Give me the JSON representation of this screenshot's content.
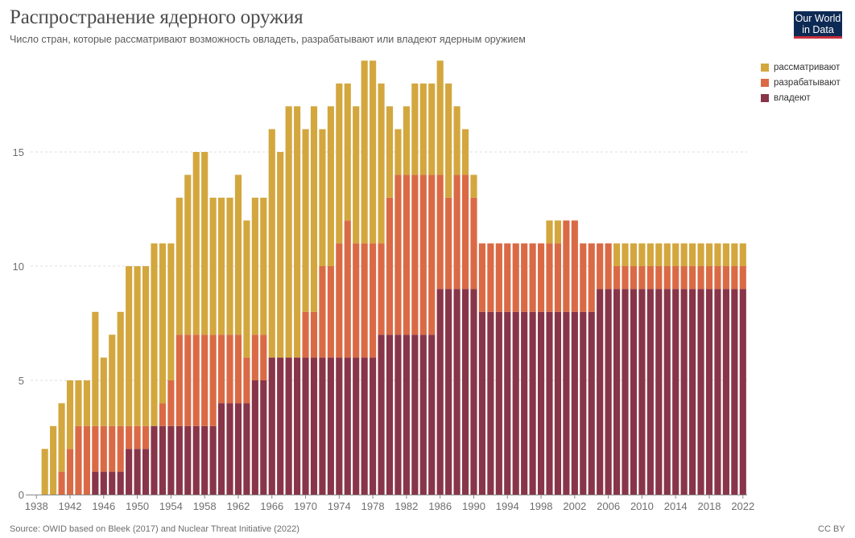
{
  "header": {
    "title": "Распространение ядерного оружия",
    "subtitle": "Число стран, которые рассматривают возможность овладеть, разрабатывают или владеют ядерным оружием",
    "logo_line1": "Our World",
    "logo_line2": "in Data"
  },
  "footer": {
    "source": "Source: OWID based on Bleek (2017) and Nuclear Threat Initiative (2022)",
    "license": "CC BY"
  },
  "colors": {
    "consider": "#d3a73e",
    "develop": "#da6a45",
    "own": "#883549"
  },
  "chart_data": {
    "type": "bar",
    "stacked": true,
    "title": "Распространение ядерного оружия",
    "subtitle": "Число стран, которые рассматривают возможность овладеть, разрабатывают или владеют ядерным оружием",
    "xlabel": "",
    "ylabel": "",
    "ylim": [
      0,
      19
    ],
    "y_ticks": [
      0,
      5,
      10,
      15
    ],
    "x_ticks": [
      "1938",
      "1942",
      "1946",
      "1950",
      "1954",
      "1958",
      "1962",
      "1966",
      "1970",
      "1974",
      "1978",
      "1982",
      "1986",
      "1990",
      "1994",
      "1998",
      "2002",
      "2006",
      "2010",
      "2014",
      "2018",
      "2022"
    ],
    "grid": true,
    "legend_position": "top-right",
    "legend": [
      "рассматривают",
      "разрабатывают",
      "владеют"
    ],
    "categories": [
      1939,
      1940,
      1941,
      1942,
      1943,
      1944,
      1945,
      1946,
      1947,
      1948,
      1949,
      1950,
      1951,
      1952,
      1953,
      1954,
      1955,
      1956,
      1957,
      1958,
      1959,
      1960,
      1961,
      1962,
      1963,
      1964,
      1965,
      1966,
      1967,
      1968,
      1969,
      1970,
      1971,
      1972,
      1973,
      1974,
      1975,
      1976,
      1977,
      1978,
      1979,
      1980,
      1981,
      1982,
      1983,
      1984,
      1985,
      1986,
      1987,
      1988,
      1989,
      1990,
      1991,
      1992,
      1993,
      1994,
      1995,
      1996,
      1997,
      1998,
      1999,
      2000,
      2001,
      2002,
      2003,
      2004,
      2005,
      2006,
      2007,
      2008,
      2009,
      2010,
      2011,
      2012,
      2013,
      2014,
      2015,
      2016,
      2017,
      2018,
      2019,
      2020,
      2021,
      2022
    ],
    "series": [
      {
        "name": "владеют",
        "key": "own",
        "values": [
          0,
          0,
          0,
          0,
          0,
          0,
          1,
          1,
          1,
          1,
          2,
          2,
          2,
          3,
          3,
          3,
          3,
          3,
          3,
          3,
          3,
          4,
          4,
          4,
          4,
          5,
          5,
          6,
          6,
          6,
          6,
          6,
          6,
          6,
          6,
          6,
          6,
          6,
          6,
          6,
          7,
          7,
          7,
          7,
          7,
          7,
          7,
          9,
          9,
          9,
          9,
          9,
          8,
          8,
          8,
          8,
          8,
          8,
          8,
          8,
          8,
          8,
          8,
          8,
          8,
          8,
          9,
          9,
          9,
          9,
          9,
          9,
          9,
          9,
          9,
          9,
          9,
          9,
          9,
          9,
          9,
          9,
          9,
          9
        ]
      },
      {
        "name": "разрабатывают",
        "key": "develop",
        "values": [
          0,
          0,
          1,
          2,
          3,
          3,
          2,
          2,
          2,
          2,
          1,
          1,
          1,
          0,
          1,
          2,
          4,
          4,
          4,
          4,
          4,
          3,
          3,
          3,
          2,
          2,
          2,
          0,
          0,
          0,
          0,
          2,
          2,
          4,
          4,
          5,
          6,
          5,
          5,
          5,
          4,
          6,
          7,
          7,
          7,
          7,
          7,
          5,
          4,
          5,
          5,
          4,
          3,
          3,
          3,
          3,
          3,
          3,
          3,
          3,
          3,
          3,
          4,
          4,
          3,
          3,
          2,
          2,
          1,
          1,
          1,
          1,
          1,
          1,
          1,
          1,
          1,
          1,
          1,
          1,
          1,
          1,
          1,
          1
        ]
      },
      {
        "name": "рассматривают",
        "key": "consider",
        "values": [
          2,
          3,
          3,
          3,
          2,
          2,
          5,
          3,
          4,
          5,
          7,
          7,
          7,
          8,
          7,
          6,
          6,
          7,
          8,
          8,
          6,
          6,
          6,
          7,
          6,
          6,
          6,
          10,
          9,
          11,
          11,
          8,
          9,
          6,
          7,
          7,
          6,
          6,
          8,
          8,
          7,
          4,
          2,
          3,
          4,
          4,
          4,
          5,
          5,
          3,
          2,
          1,
          0,
          0,
          0,
          0,
          0,
          0,
          0,
          0,
          1,
          1,
          0,
          0,
          0,
          0,
          0,
          0,
          1,
          1,
          1,
          1,
          1,
          1,
          1,
          1,
          1,
          1,
          1,
          1,
          1,
          1,
          1,
          1
        ]
      }
    ]
  }
}
